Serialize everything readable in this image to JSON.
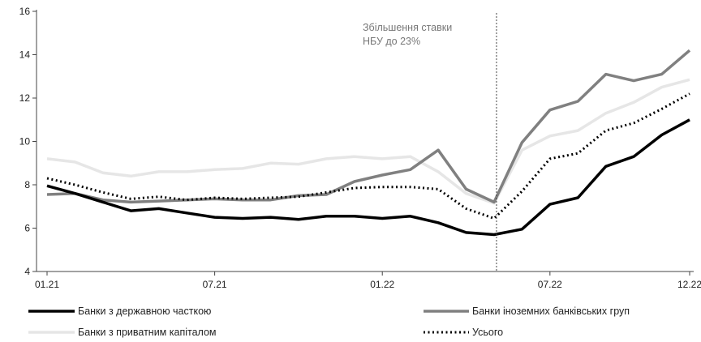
{
  "chart_data": {
    "type": "line",
    "title": "",
    "xlabel": "",
    "ylabel": "",
    "ylim": [
      4,
      16
    ],
    "yticks": [
      4,
      6,
      8,
      10,
      12,
      14,
      16
    ],
    "x": [
      "01.21",
      "02.21",
      "03.21",
      "04.21",
      "05.21",
      "06.21",
      "07.21",
      "08.21",
      "09.21",
      "10.21",
      "11.21",
      "12.21",
      "01.22",
      "02.22",
      "03.22",
      "04.22",
      "05.22",
      "06.22",
      "07.22",
      "08.22",
      "09.22",
      "10.22",
      "11.22",
      "12.22"
    ],
    "xtick_labels": [
      "01.21",
      "07.21",
      "01.22",
      "07.22",
      "12.22"
    ],
    "grid": "none",
    "legend_position": "bottom",
    "annotation": {
      "line1": "Збільшення ставки",
      "line2": "НБУ до 23%",
      "at": "05.22"
    },
    "series": [
      {
        "name": "Банки з державною часткою",
        "color": "#000000",
        "style": "solid",
        "values": [
          7.95,
          7.6,
          7.2,
          6.8,
          6.9,
          6.7,
          6.5,
          6.45,
          6.5,
          6.4,
          6.55,
          6.55,
          6.45,
          6.55,
          6.25,
          5.8,
          5.7,
          5.95,
          7.1,
          7.4,
          8.85,
          9.3,
          10.3,
          11.0
        ]
      },
      {
        "name": "Банки іноземних банківських груп",
        "color": "#808080",
        "style": "solid",
        "values": [
          7.55,
          7.6,
          7.3,
          7.2,
          7.25,
          7.3,
          7.35,
          7.3,
          7.3,
          7.5,
          7.55,
          8.15,
          8.45,
          8.7,
          9.6,
          7.8,
          7.2,
          9.95,
          11.45,
          11.85,
          13.1,
          12.8,
          13.1,
          14.2
        ]
      },
      {
        "name": "Банки з приватним капіталом",
        "color": "#e6e6e6",
        "style": "solid",
        "values": [
          9.2,
          9.05,
          8.55,
          8.4,
          8.6,
          8.6,
          8.7,
          8.75,
          9.0,
          8.95,
          9.2,
          9.3,
          9.2,
          9.3,
          8.6,
          7.6,
          7.15,
          9.6,
          10.25,
          10.5,
          11.3,
          11.8,
          12.5,
          12.85
        ]
      },
      {
        "name": "Усього",
        "color": "#000000",
        "style": "dotted",
        "values": [
          8.3,
          8.0,
          7.65,
          7.35,
          7.45,
          7.3,
          7.4,
          7.35,
          7.4,
          7.45,
          7.65,
          7.85,
          7.9,
          7.9,
          7.8,
          6.9,
          6.45,
          7.7,
          9.2,
          9.45,
          10.5,
          10.85,
          11.5,
          12.2
        ]
      }
    ]
  }
}
